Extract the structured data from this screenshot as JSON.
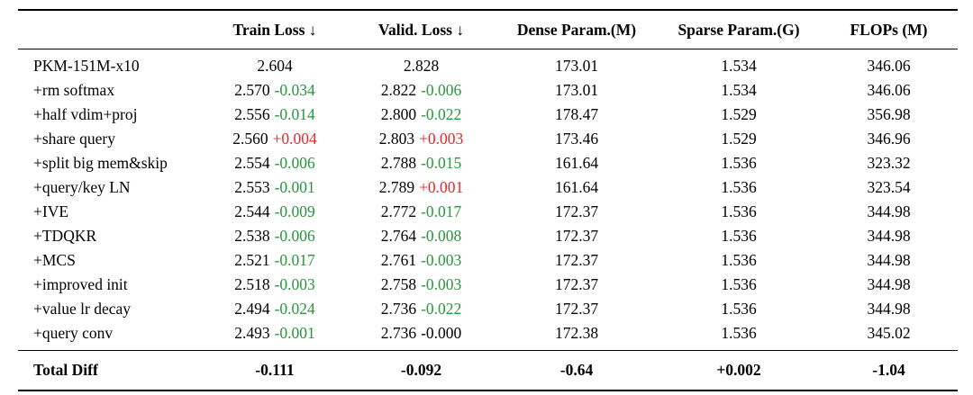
{
  "palette": {
    "green": "#28963c",
    "red": "#e8282d",
    "text": "#000000",
    "background": "#ffffff",
    "rule": "#000000"
  },
  "table": {
    "columns": [
      "",
      "Train Loss ↓",
      "Valid. Loss ↓",
      "Dense Param.(M)",
      "Sparse Param.(G)",
      "FLOPs (M)"
    ],
    "rows": [
      {
        "label": "PKM-151M-x10",
        "train": "2.604",
        "train_diff": "",
        "train_diff_color": "",
        "valid": "2.828",
        "valid_diff": "",
        "valid_diff_color": "",
        "dense": "173.01",
        "sparse": "1.534",
        "flops": "346.06"
      },
      {
        "label": "+rm softmax",
        "train": "2.570",
        "train_diff": "-0.034",
        "train_diff_color": "green",
        "valid": "2.822",
        "valid_diff": "-0.006",
        "valid_diff_color": "green",
        "dense": "173.01",
        "sparse": "1.534",
        "flops": "346.06"
      },
      {
        "label": "+half vdim+proj",
        "train": "2.556",
        "train_diff": "-0.014",
        "train_diff_color": "green",
        "valid": "2.800",
        "valid_diff": "-0.022",
        "valid_diff_color": "green",
        "dense": "178.47",
        "sparse": "1.529",
        "flops": "356.98"
      },
      {
        "label": "+share query",
        "train": "2.560",
        "train_diff": "+0.004",
        "train_diff_color": "red",
        "valid": "2.803",
        "valid_diff": "+0.003",
        "valid_diff_color": "red",
        "dense": "173.46",
        "sparse": "1.529",
        "flops": "346.96"
      },
      {
        "label": "+split big mem&skip",
        "train": "2.554",
        "train_diff": "-0.006",
        "train_diff_color": "green",
        "valid": "2.788",
        "valid_diff": "-0.015",
        "valid_diff_color": "green",
        "dense": "161.64",
        "sparse": "1.536",
        "flops": "323.32"
      },
      {
        "label": "+query/key LN",
        "train": "2.553",
        "train_diff": "-0.001",
        "train_diff_color": "green",
        "valid": "2.789",
        "valid_diff": "+0.001",
        "valid_diff_color": "red",
        "dense": "161.64",
        "sparse": "1.536",
        "flops": "323.54"
      },
      {
        "label": "+IVE",
        "train": "2.544",
        "train_diff": "-0.009",
        "train_diff_color": "green",
        "valid": "2.772",
        "valid_diff": "-0.017",
        "valid_diff_color": "green",
        "dense": "172.37",
        "sparse": "1.536",
        "flops": "344.98"
      },
      {
        "label": "+TDQKR",
        "train": "2.538",
        "train_diff": "-0.006",
        "train_diff_color": "green",
        "valid": "2.764",
        "valid_diff": "-0.008",
        "valid_diff_color": "green",
        "dense": "172.37",
        "sparse": "1.536",
        "flops": "344.98"
      },
      {
        "label": "+MCS",
        "train": "2.521",
        "train_diff": "-0.017",
        "train_diff_color": "green",
        "valid": "2.761",
        "valid_diff": "-0.003",
        "valid_diff_color": "green",
        "dense": "172.37",
        "sparse": "1.536",
        "flops": "344.98"
      },
      {
        "label": "+improved init",
        "train": "2.518",
        "train_diff": "-0.003",
        "train_diff_color": "green",
        "valid": "2.758",
        "valid_diff": "-0.003",
        "valid_diff_color": "green",
        "dense": "172.37",
        "sparse": "1.536",
        "flops": "344.98"
      },
      {
        "label": "+value lr decay",
        "train": "2.494",
        "train_diff": "-0.024",
        "train_diff_color": "green",
        "valid": "2.736",
        "valid_diff": "-0.022",
        "valid_diff_color": "green",
        "dense": "172.37",
        "sparse": "1.536",
        "flops": "344.98"
      },
      {
        "label": "+query conv",
        "train": "2.493",
        "train_diff": "-0.001",
        "train_diff_color": "green",
        "valid": "2.736",
        "valid_diff": "-0.000",
        "valid_diff_color": "black",
        "dense": "172.38",
        "sparse": "1.536",
        "flops": "345.02"
      }
    ],
    "total": {
      "label": "Total Diff",
      "train": "-0.111",
      "valid": "-0.092",
      "dense": "-0.64",
      "sparse": "+0.002",
      "flops": "-1.04"
    }
  }
}
